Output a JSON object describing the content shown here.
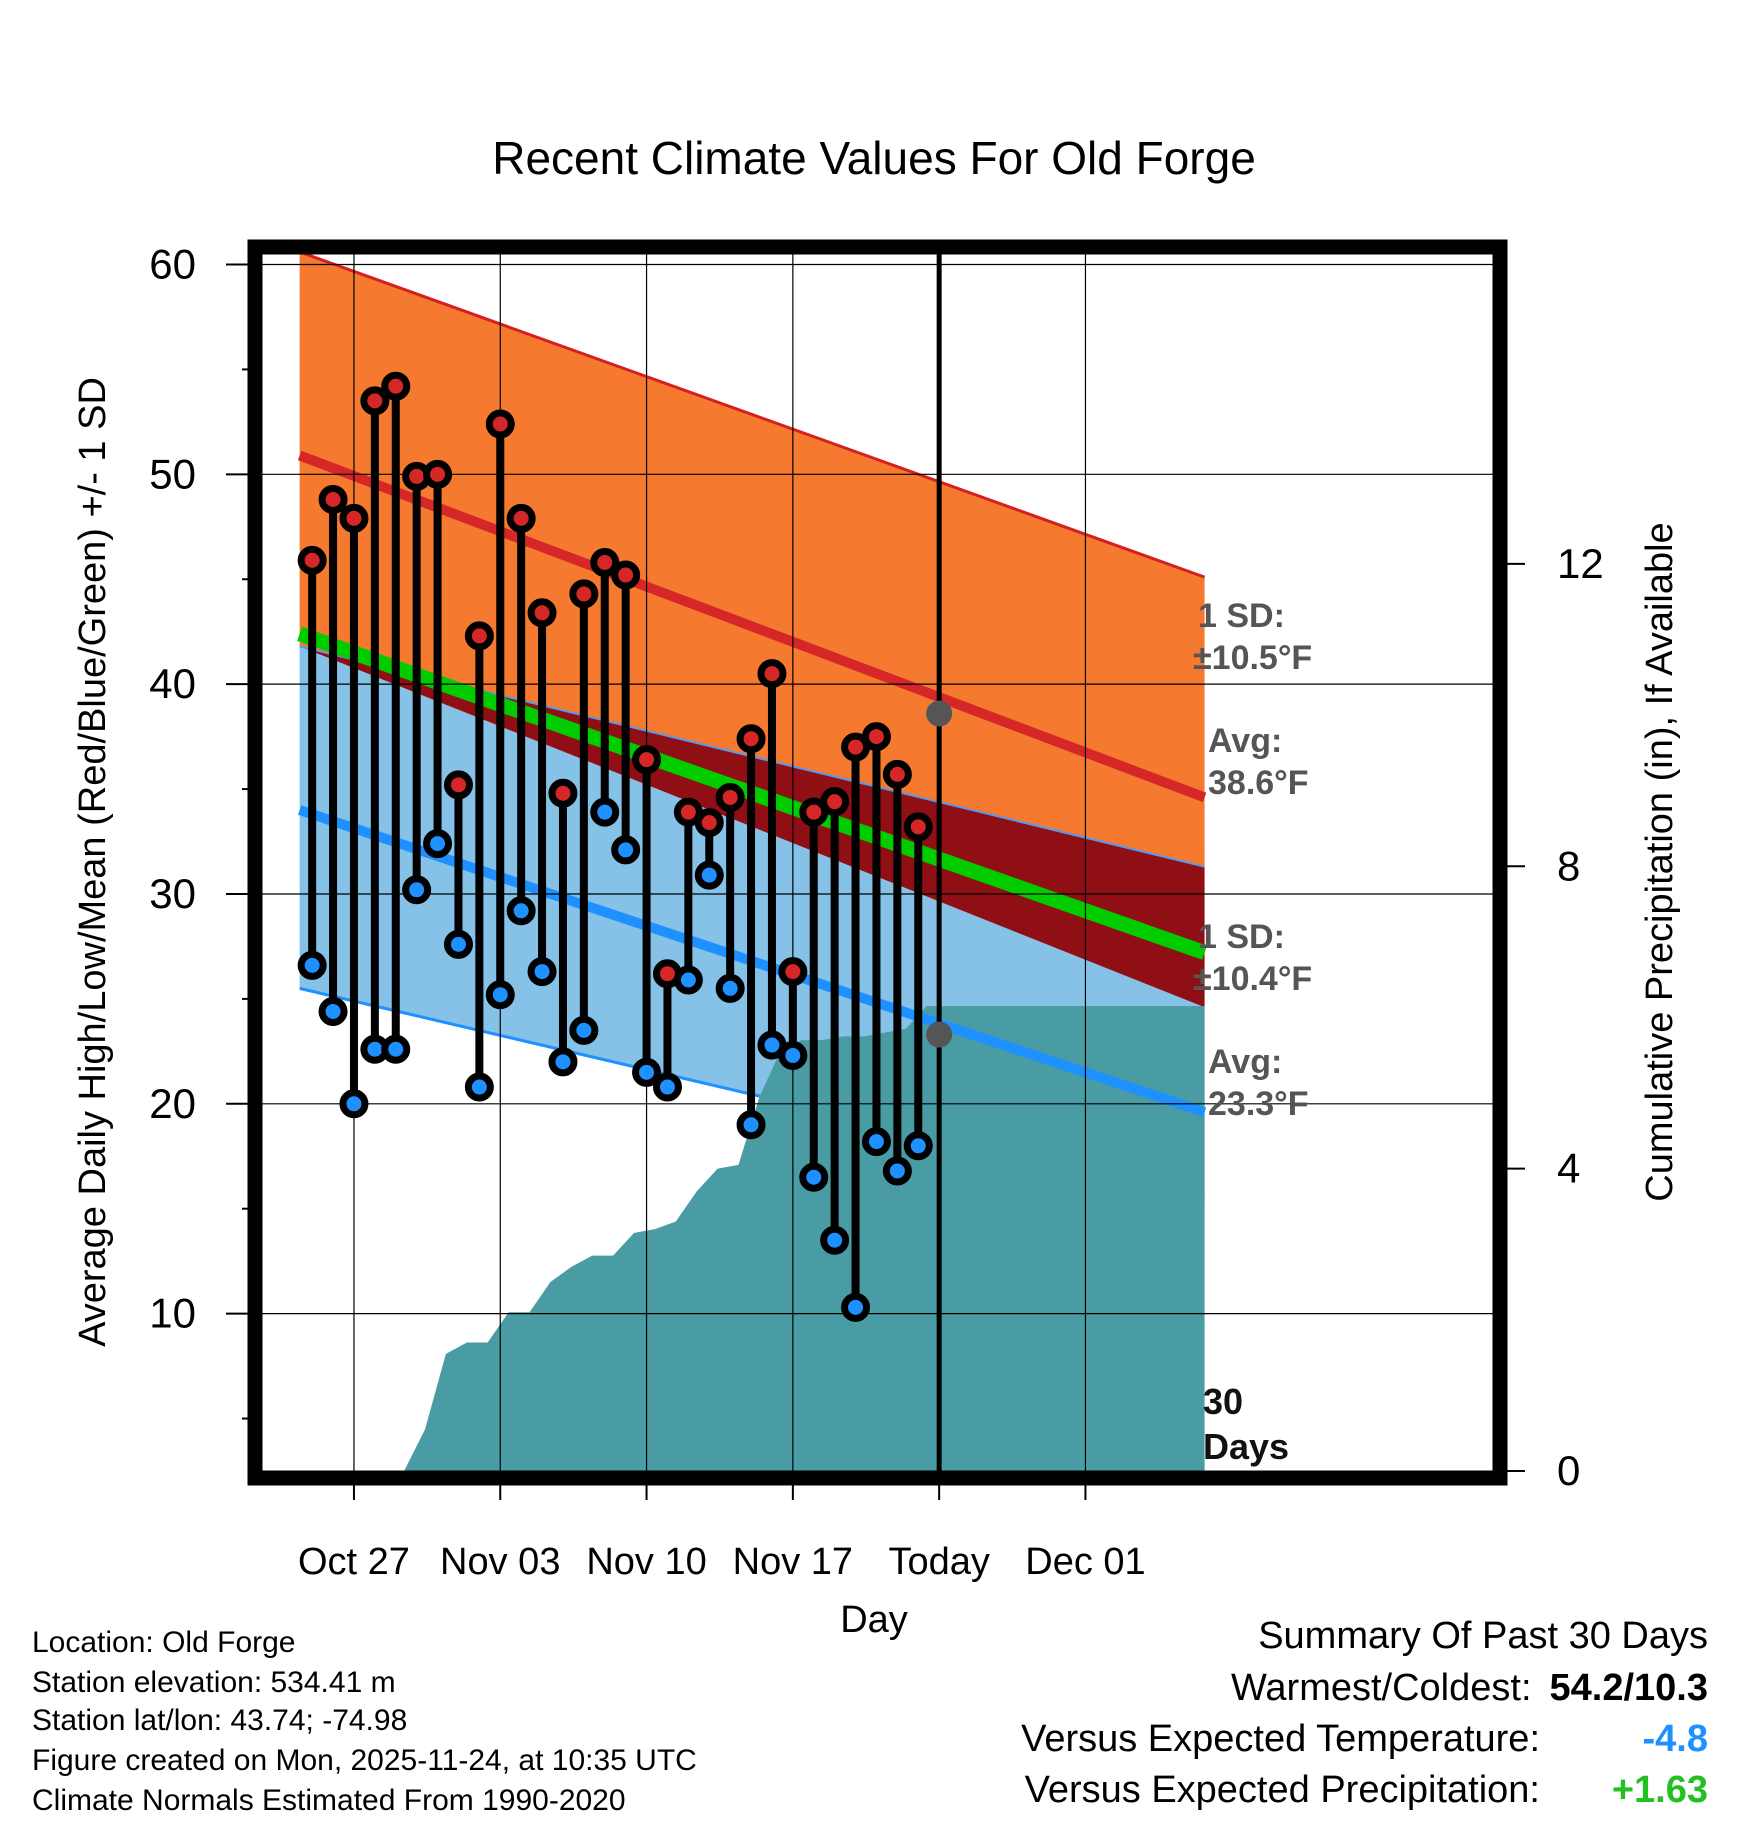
{
  "chart_data": {
    "type": "line",
    "title": "Recent Climate Values For Old Forge",
    "xlabel": "Day",
    "ylabel": "Average Daily High/Low/Mean (Red/Blue/Green) +/- 1 SD",
    "y2label": "Cumulative Precipitation (in), If Available",
    "ylim": [
      2.5,
      60.5
    ],
    "y_ticks": [
      10,
      20,
      30,
      40,
      50,
      60
    ],
    "y2lim": [
      0,
      16.1
    ],
    "y2_ticks": [
      0,
      4,
      8,
      12
    ],
    "xlim": [
      -4.4,
      54.5
    ],
    "x_ticks": [
      {
        "day": 0,
        "label": "Oct 27"
      },
      {
        "day": 7,
        "label": "Nov 03"
      },
      {
        "day": 14,
        "label": "Nov 10"
      },
      {
        "day": 21,
        "label": "Nov 17"
      },
      {
        "day": 28,
        "label": "Today"
      },
      {
        "day": 35,
        "label": "Dec 01"
      }
    ],
    "today_day": 28,
    "today_label": [
      "30",
      "Days"
    ],
    "normals": {
      "x": [
        -2.6,
        40.7
      ],
      "high_mean": [
        50.9,
        34.6
      ],
      "high_upper": [
        60.6,
        45.1
      ],
      "high_lower": [
        41.8,
        31.3
      ],
      "mean": [
        42.4,
        27.2
      ],
      "low_mean": [
        34.0,
        19.6
      ],
      "low_upper": [
        41.8,
        24.6
      ],
      "low_lower": [
        25.5,
        15.4
      ]
    },
    "high_sd_label": [
      "1 SD:",
      "±10.5°F"
    ],
    "high_avg_label": [
      "Avg:",
      "38.6°F"
    ],
    "high_avg_today": 38.6,
    "low_sd_label": [
      "1 SD:",
      "±10.4°F"
    ],
    "low_avg_label": [
      "Avg:",
      "23.3°F"
    ],
    "low_avg_today": 23.3,
    "series": [
      {
        "name": "Daily High",
        "color": "#d62728",
        "values": [
          45.9,
          48.8,
          47.9,
          53.5,
          54.2,
          49.9,
          50.0,
          35.2,
          42.3,
          52.4,
          47.9,
          43.4,
          34.8,
          44.3,
          45.8,
          45.2,
          36.4,
          26.2,
          33.9,
          33.4,
          34.6,
          37.4,
          40.5,
          26.3,
          33.9,
          34.4,
          37.0,
          37.5,
          35.7,
          33.2
        ]
      },
      {
        "name": "Daily Low",
        "color": "#1e90ff",
        "values": [
          26.6,
          24.4,
          20.0,
          22.6,
          22.6,
          30.2,
          32.4,
          27.6,
          20.8,
          25.2,
          29.2,
          26.3,
          22.0,
          23.5,
          33.9,
          32.1,
          21.5,
          20.8,
          25.9,
          30.9,
          25.5,
          19.0,
          22.8,
          22.3,
          16.5,
          13.5,
          10.3,
          18.2,
          16.8,
          18.0
        ]
      },
      {
        "name": "Cumulative Precipitation",
        "color": "#4a9ca4",
        "values": [
          0.0,
          0.0,
          0.0,
          0.0,
          0.0,
          0.0,
          0.55,
          1.55,
          1.7,
          1.7,
          2.1,
          2.1,
          2.5,
          2.7,
          2.85,
          2.85,
          3.15,
          3.2,
          3.3,
          3.7,
          4.0,
          4.05,
          4.95,
          5.55,
          5.7,
          5.7,
          5.75,
          5.75,
          5.8,
          5.85,
          6.15,
          6.15
        ]
      }
    ]
  },
  "station": {
    "location": "Location: Old Forge",
    "elevation": "Station elevation: 534.41 m",
    "latlon": "Station lat/lon: 43.74; -74.98",
    "created": "Figure created on Mon, 2025-11-24, at 10:35 UTC",
    "normals_period": "Climate Normals Estimated From 1990-2020"
  },
  "summary": {
    "heading": "Summary Of Past 30 Days",
    "warmest_coldest_label": "Warmest/Coldest:",
    "warmest_coldest_value": "54.2/10.3",
    "temp_label": "Versus Expected Temperature:",
    "temp_value": "-4.8",
    "temp_color": "#1e90ff",
    "precip_label": "Versus Expected Precipitation:",
    "precip_value": "+1.63",
    "precip_color": "#22c022"
  }
}
